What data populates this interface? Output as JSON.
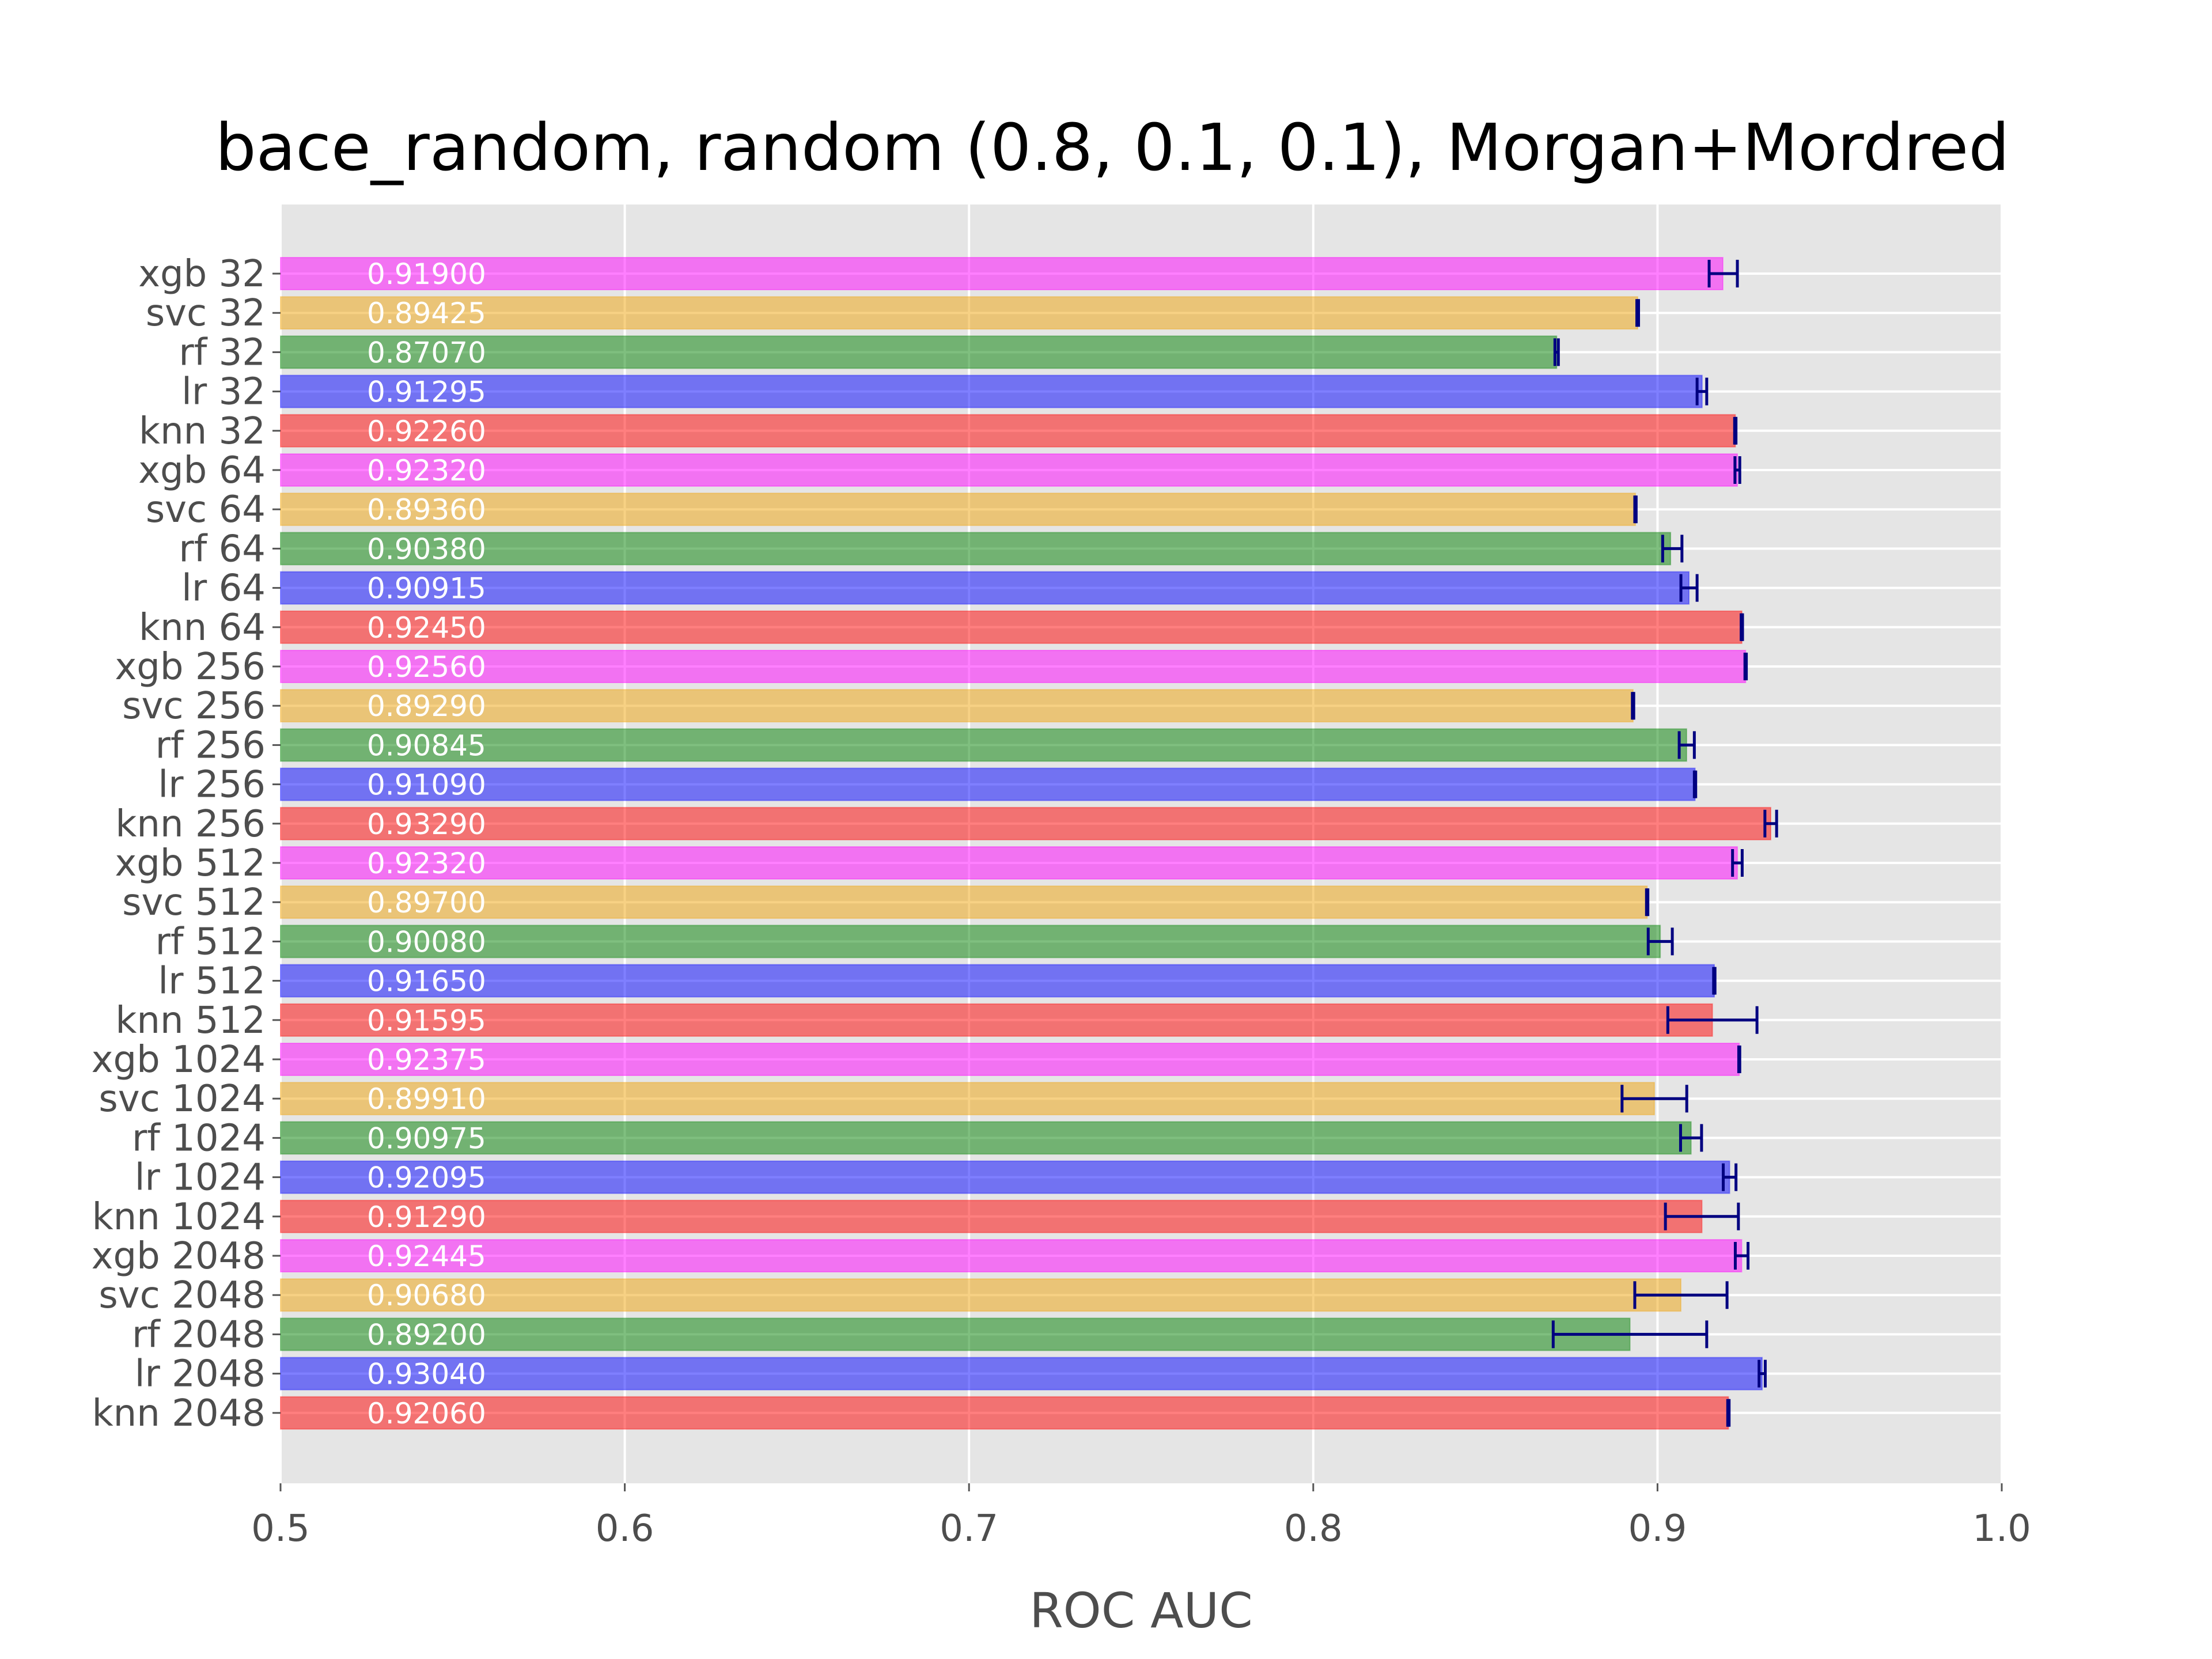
{
  "chart_data": {
    "type": "bar",
    "orientation": "horizontal",
    "title": "bace_random, random (0.8, 0.1, 0.1), Morgan+Mordred",
    "xlabel": "ROC AUC",
    "ylabel": "",
    "xlim": [
      0.5,
      1.0
    ],
    "xticks": [
      "0.5",
      "0.6",
      "0.7",
      "0.8",
      "0.9",
      "1.0"
    ],
    "grid": true,
    "colors": {
      "xgb": "#ff00ff",
      "svc": "#f0a30a",
      "rf": "#008000",
      "lr": "#0000ff",
      "knn": "#ff0000",
      "error_bar": "#000080",
      "background": "#e5e5e5"
    },
    "bars": [
      {
        "label": "xgb 32",
        "model": "xgb",
        "value": 0.919,
        "value_text": "0.91900",
        "err_low": 0.915,
        "err_high": 0.9232
      },
      {
        "label": "svc 32",
        "model": "svc",
        "value": 0.89425,
        "value_text": "0.89425",
        "err_low": 0.894,
        "err_high": 0.8945
      },
      {
        "label": "rf 32",
        "model": "rf",
        "value": 0.8707,
        "value_text": "0.87070",
        "err_low": 0.8702,
        "err_high": 0.8712
      },
      {
        "label": "lr 32",
        "model": "lr",
        "value": 0.91295,
        "value_text": "0.91295",
        "err_low": 0.9115,
        "err_high": 0.9143
      },
      {
        "label": "knn 32",
        "model": "knn",
        "value": 0.9226,
        "value_text": "0.92260",
        "err_low": 0.9224,
        "err_high": 0.9228
      },
      {
        "label": "xgb 64",
        "model": "xgb",
        "value": 0.9232,
        "value_text": "0.92320",
        "err_low": 0.9225,
        "err_high": 0.9239
      },
      {
        "label": "svc 64",
        "model": "svc",
        "value": 0.8936,
        "value_text": "0.89360",
        "err_low": 0.8934,
        "err_high": 0.8938
      },
      {
        "label": "rf 64",
        "model": "rf",
        "value": 0.9038,
        "value_text": "0.90380",
        "err_low": 0.9015,
        "err_high": 0.9071
      },
      {
        "label": "lr 64",
        "model": "lr",
        "value": 0.90915,
        "value_text": "0.90915",
        "err_low": 0.9068,
        "err_high": 0.9115
      },
      {
        "label": "knn 64",
        "model": "knn",
        "value": 0.9245,
        "value_text": "0.92450",
        "err_low": 0.9243,
        "err_high": 0.9247
      },
      {
        "label": "xgb 256",
        "model": "xgb",
        "value": 0.9256,
        "value_text": "0.92560",
        "err_low": 0.9254,
        "err_high": 0.9258
      },
      {
        "label": "svc 256",
        "model": "svc",
        "value": 0.8929,
        "value_text": "0.89290",
        "err_low": 0.8927,
        "err_high": 0.8931
      },
      {
        "label": "rf 256",
        "model": "rf",
        "value": 0.90845,
        "value_text": "0.90845",
        "err_low": 0.9063,
        "err_high": 0.9107
      },
      {
        "label": "lr 256",
        "model": "lr",
        "value": 0.9109,
        "value_text": "0.91090",
        "err_low": 0.9107,
        "err_high": 0.9111
      },
      {
        "label": "knn 256",
        "model": "knn",
        "value": 0.9329,
        "value_text": "0.93290",
        "err_low": 0.9312,
        "err_high": 0.9346
      },
      {
        "label": "xgb 512",
        "model": "xgb",
        "value": 0.9232,
        "value_text": "0.92320",
        "err_low": 0.9218,
        "err_high": 0.9246
      },
      {
        "label": "svc 512",
        "model": "svc",
        "value": 0.897,
        "value_text": "0.89700",
        "err_low": 0.8968,
        "err_high": 0.8972
      },
      {
        "label": "rf 512",
        "model": "rf",
        "value": 0.9008,
        "value_text": "0.90080",
        "err_low": 0.8973,
        "err_high": 0.9043
      },
      {
        "label": "lr 512",
        "model": "lr",
        "value": 0.9165,
        "value_text": "0.91650",
        "err_low": 0.9163,
        "err_high": 0.9167
      },
      {
        "label": "knn 512",
        "model": "knn",
        "value": 0.91595,
        "value_text": "0.91595",
        "err_low": 0.903,
        "err_high": 0.9289
      },
      {
        "label": "xgb 1024",
        "model": "xgb",
        "value": 0.92375,
        "value_text": "0.92375",
        "err_low": 0.9236,
        "err_high": 0.9239
      },
      {
        "label": "svc 1024",
        "model": "svc",
        "value": 0.8991,
        "value_text": "0.89910",
        "err_low": 0.8897,
        "err_high": 0.9085
      },
      {
        "label": "rf 1024",
        "model": "rf",
        "value": 0.90975,
        "value_text": "0.90975",
        "err_low": 0.9067,
        "err_high": 0.9128
      },
      {
        "label": "lr 1024",
        "model": "lr",
        "value": 0.92095,
        "value_text": "0.92095",
        "err_low": 0.9191,
        "err_high": 0.9228
      },
      {
        "label": "knn 1024",
        "model": "knn",
        "value": 0.9129,
        "value_text": "0.91290",
        "err_low": 0.9023,
        "err_high": 0.9235
      },
      {
        "label": "xgb 2048",
        "model": "xgb",
        "value": 0.92445,
        "value_text": "0.92445",
        "err_low": 0.9226,
        "err_high": 0.9263
      },
      {
        "label": "svc 2048",
        "model": "svc",
        "value": 0.9068,
        "value_text": "0.90680",
        "err_low": 0.8934,
        "err_high": 0.9202
      },
      {
        "label": "rf 2048",
        "model": "rf",
        "value": 0.892,
        "value_text": "0.89200",
        "err_low": 0.8697,
        "err_high": 0.9143
      },
      {
        "label": "lr 2048",
        "model": "lr",
        "value": 0.9304,
        "value_text": "0.93040",
        "err_low": 0.9295,
        "err_high": 0.9313
      },
      {
        "label": "knn 2048",
        "model": "knn",
        "value": 0.9206,
        "value_text": "0.92060",
        "err_low": 0.9204,
        "err_high": 0.9208
      }
    ]
  }
}
